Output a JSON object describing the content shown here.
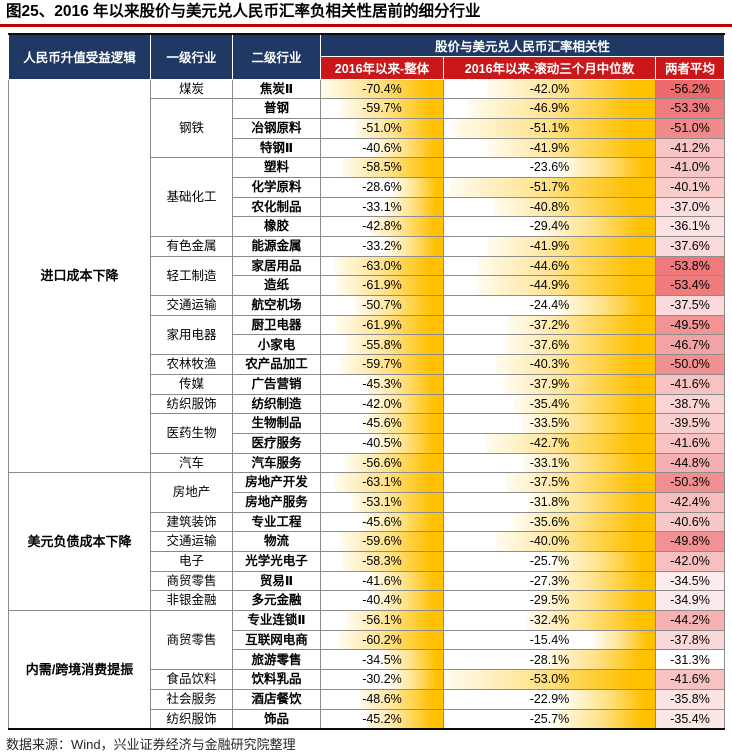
{
  "figure": {
    "title": "图25、2016 年以来股价与美元兑人民币汇率负相关性居前的细分行业",
    "source": "数据来源：Wind，兴业证券经济与金融研究院整理"
  },
  "colors": {
    "header_navy": "#1F3864",
    "header_red": "#C9171A",
    "bar_gold": "#FFC000",
    "avg_scale_max_red": "#ED6B6D",
    "title_underline": "#C00000",
    "grid_line": "#8c8c8c"
  },
  "table": {
    "headers": {
      "logic": "人民币升值受益逻辑",
      "industry_l1": "一级行业",
      "industry_l2": "二级行业",
      "correlation_group": "股价与美元兑人民币汇率相关性",
      "col_overall": "2016年以来-整体",
      "col_rolling": "2016年以来-滚动三个月中位数",
      "col_average": "两者平均"
    }
  },
  "chart_data": {
    "type": "table",
    "title": "图25、2016 年以来股价与美元兑人民币汇率负相关性居前的细分行业",
    "unit": "%",
    "columns": [
      "人民币升值受益逻辑",
      "一级行业",
      "二级行业",
      "2016年以来-整体",
      "2016年以来-滚动三个月中位数",
      "两者平均"
    ],
    "format": "negative correlations shown as percentages; gold data bars on columns 4-5 scaled to each column max magnitude; last column red color scale by magnitude",
    "rows": [
      [
        "进口成本下降",
        "煤炭",
        "焦炭Ⅱ",
        -70.4,
        -42.0,
        -56.2
      ],
      [
        "进口成本下降",
        "钢铁",
        "普钢",
        -59.7,
        -46.9,
        -53.3
      ],
      [
        "进口成本下降",
        "钢铁",
        "冶钢原料",
        -51.0,
        -51.1,
        -51.0
      ],
      [
        "进口成本下降",
        "钢铁",
        "特钢Ⅱ",
        -40.6,
        -41.9,
        -41.2
      ],
      [
        "进口成本下降",
        "基础化工",
        "塑料",
        -58.5,
        -23.6,
        -41.0
      ],
      [
        "进口成本下降",
        "基础化工",
        "化学原料",
        -28.6,
        -51.7,
        -40.1
      ],
      [
        "进口成本下降",
        "基础化工",
        "农化制品",
        -33.1,
        -40.8,
        -37.0
      ],
      [
        "进口成本下降",
        "基础化工",
        "橡胶",
        -42.8,
        -29.4,
        -36.1
      ],
      [
        "进口成本下降",
        "有色金属",
        "能源金属",
        -33.2,
        -41.9,
        -37.6
      ],
      [
        "进口成本下降",
        "轻工制造",
        "家居用品",
        -63.0,
        -44.6,
        -53.8
      ],
      [
        "进口成本下降",
        "轻工制造",
        "造纸",
        -61.9,
        -44.9,
        -53.4
      ],
      [
        "进口成本下降",
        "交通运输",
        "航空机场",
        -50.7,
        -24.4,
        -37.5
      ],
      [
        "进口成本下降",
        "家用电器",
        "厨卫电器",
        -61.9,
        -37.2,
        -49.5
      ],
      [
        "进口成本下降",
        "家用电器",
        "小家电",
        -55.8,
        -37.6,
        -46.7
      ],
      [
        "进口成本下降",
        "农林牧渔",
        "农产品加工",
        -59.7,
        -40.3,
        -50.0
      ],
      [
        "进口成本下降",
        "传媒",
        "广告营销",
        -45.3,
        -37.9,
        -41.6
      ],
      [
        "进口成本下降",
        "纺织服饰",
        "纺织制造",
        -42.0,
        -35.4,
        -38.7
      ],
      [
        "进口成本下降",
        "医药生物",
        "生物制品",
        -45.6,
        -33.5,
        -39.5
      ],
      [
        "进口成本下降",
        "医药生物",
        "医疗服务",
        -40.5,
        -42.7,
        -41.6
      ],
      [
        "进口成本下降",
        "汽车",
        "汽车服务",
        -56.6,
        -33.1,
        -44.8
      ],
      [
        "美元负债成本下降",
        "房地产",
        "房地产开发",
        -63.1,
        -37.5,
        -50.3
      ],
      [
        "美元负债成本下降",
        "房地产",
        "房地产服务",
        -53.1,
        -31.8,
        -42.4
      ],
      [
        "美元负债成本下降",
        "建筑装饰",
        "专业工程",
        -45.6,
        -35.6,
        -40.6
      ],
      [
        "美元负债成本下降",
        "交通运输",
        "物流",
        -59.6,
        -40.0,
        -49.8
      ],
      [
        "美元负债成本下降",
        "电子",
        "光学光电子",
        -58.3,
        -25.7,
        -42.0
      ],
      [
        "美元负债成本下降",
        "商贸零售",
        "贸易Ⅱ",
        -41.6,
        -27.3,
        -34.5
      ],
      [
        "美元负债成本下降",
        "非银金融",
        "多元金融",
        -40.4,
        -29.5,
        -34.9
      ],
      [
        "内需/跨境消费提振",
        "商贸零售",
        "专业连锁Ⅱ",
        -56.1,
        -32.4,
        -44.2
      ],
      [
        "内需/跨境消费提振",
        "商贸零售",
        "互联网电商",
        -60.2,
        -15.4,
        -37.8
      ],
      [
        "内需/跨境消费提振",
        "商贸零售",
        "旅游零售",
        -34.5,
        -28.1,
        -31.3
      ],
      [
        "内需/跨境消费提振",
        "食品饮料",
        "饮料乳品",
        -30.2,
        -53.0,
        -41.6
      ],
      [
        "内需/跨境消费提振",
        "社会服务",
        "酒店餐饮",
        -48.6,
        -22.9,
        -35.8
      ],
      [
        "内需/跨境消费提振",
        "纺织服饰",
        "饰品",
        -45.2,
        -25.7,
        -35.4
      ]
    ]
  }
}
